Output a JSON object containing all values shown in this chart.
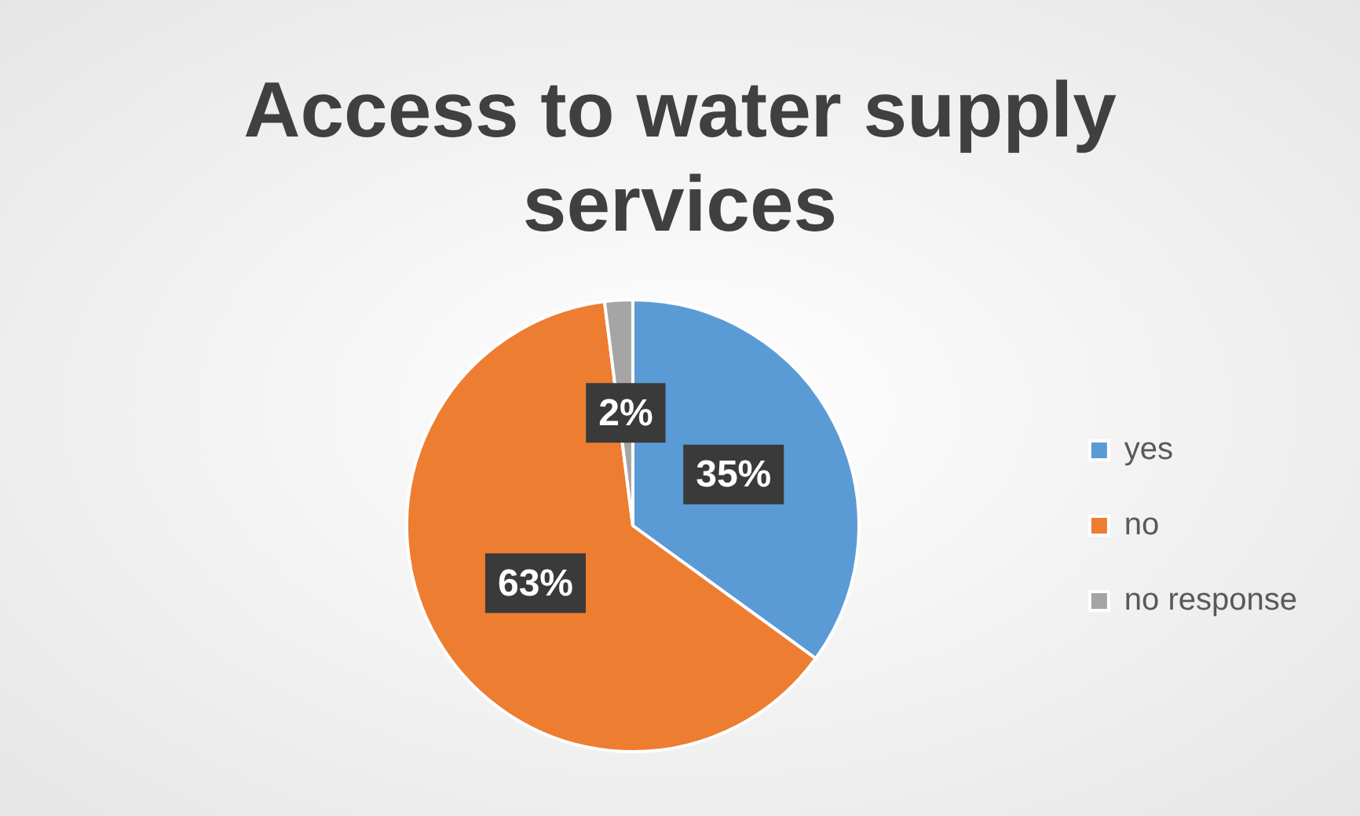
{
  "chart_data": {
    "type": "pie",
    "title": "Access to water supply services",
    "categories": [
      "yes",
      "no",
      "no response"
    ],
    "values": [
      35,
      63,
      2
    ],
    "colors": [
      "#5b9bd5",
      "#ed7d31",
      "#a5a5a5"
    ],
    "value_labels": [
      "35%",
      "63%",
      "2%"
    ],
    "legend": "right"
  }
}
